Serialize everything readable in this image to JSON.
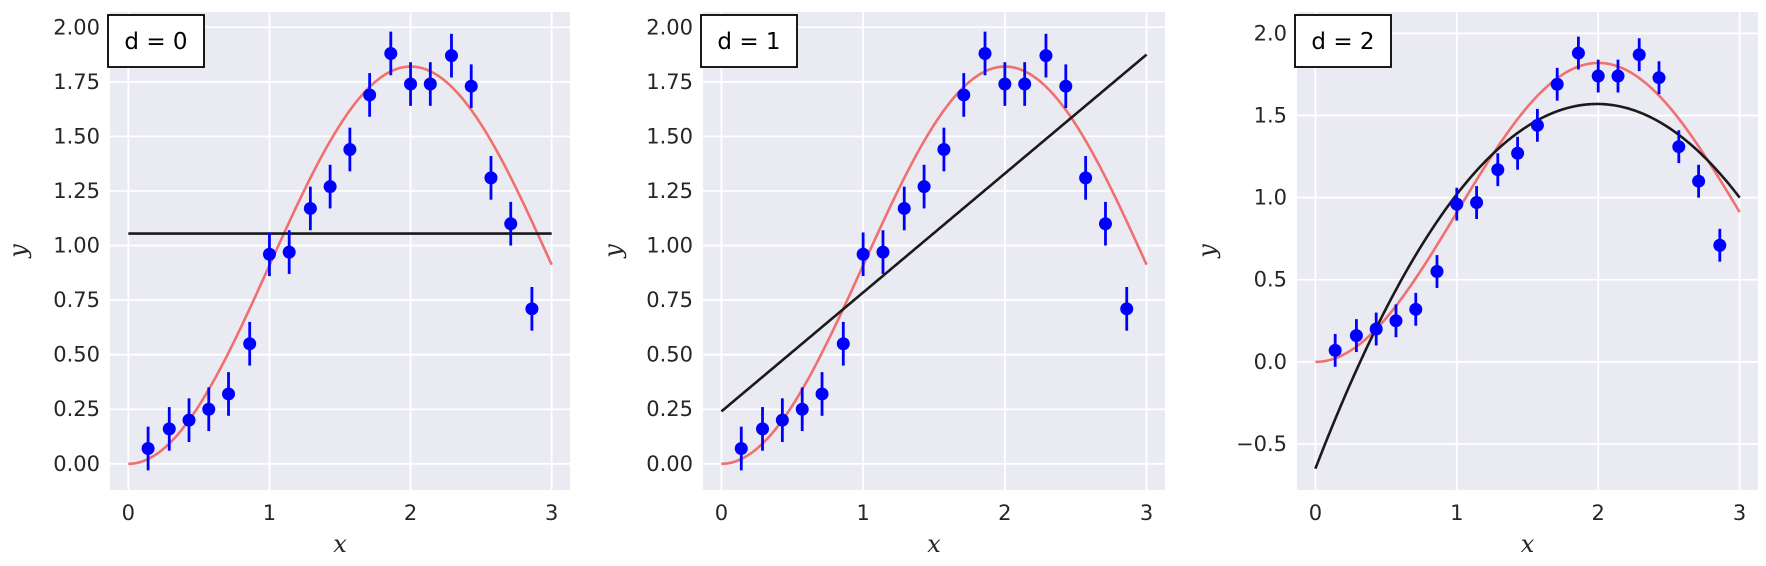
{
  "colors": {
    "background": "#eaeaf2",
    "grid": "#ffffff",
    "true_curve": "#f07070",
    "fit_line": "#1a1a1a",
    "points": "#0000ff",
    "errorbars": "#0000ff"
  },
  "chart_data": [
    {
      "type": "scatter",
      "annotation": "d = 0",
      "xlabel": "x",
      "ylabel": "y",
      "xlim": [
        -0.13,
        3.13
      ],
      "ylim": [
        -0.12,
        2.07
      ],
      "xticks": [
        0,
        1,
        2,
        3
      ],
      "xtick_labels": [
        "0",
        "1",
        "2",
        "3"
      ],
      "yticks": [
        0,
        0.25,
        0.5,
        0.75,
        1.0,
        1.25,
        1.5,
        1.75,
        2.0
      ],
      "ytick_labels": [
        "0.00",
        "0.25",
        "0.50",
        "0.75",
        "1.00",
        "1.25",
        "1.50",
        "1.75",
        "2.00"
      ],
      "grid": true,
      "fit_coeffs": [
        1.055
      ],
      "x": [
        0.14,
        0.29,
        0.43,
        0.57,
        0.71,
        0.86,
        1.0,
        1.14,
        1.29,
        1.43,
        1.57,
        1.71,
        1.86,
        2.0,
        2.14,
        2.29,
        2.43,
        2.57,
        2.71,
        2.86
      ],
      "y": [
        0.07,
        0.16,
        0.2,
        0.25,
        0.32,
        0.55,
        0.96,
        0.97,
        1.17,
        1.27,
        1.44,
        1.69,
        1.88,
        1.74,
        1.74,
        1.87,
        1.73,
        1.31,
        1.1,
        0.71
      ],
      "yerr": 0.1
    },
    {
      "type": "scatter",
      "annotation": "d = 1",
      "xlabel": "x",
      "ylabel": "y",
      "xlim": [
        -0.13,
        3.13
      ],
      "ylim": [
        -0.12,
        2.07
      ],
      "xticks": [
        0,
        1,
        2,
        3
      ],
      "xtick_labels": [
        "0",
        "1",
        "2",
        "3"
      ],
      "yticks": [
        0,
        0.25,
        0.5,
        0.75,
        1.0,
        1.25,
        1.5,
        1.75,
        2.0
      ],
      "ytick_labels": [
        "0.00",
        "0.25",
        "0.50",
        "0.75",
        "1.00",
        "1.25",
        "1.50",
        "1.75",
        "2.00"
      ],
      "grid": true,
      "fit_coeffs": [
        0.24,
        0.545
      ],
      "x": [
        0.14,
        0.29,
        0.43,
        0.57,
        0.71,
        0.86,
        1.0,
        1.14,
        1.29,
        1.43,
        1.57,
        1.71,
        1.86,
        2.0,
        2.14,
        2.29,
        2.43,
        2.57,
        2.71,
        2.86
      ],
      "y": [
        0.07,
        0.16,
        0.2,
        0.25,
        0.32,
        0.55,
        0.96,
        0.97,
        1.17,
        1.27,
        1.44,
        1.69,
        1.88,
        1.74,
        1.74,
        1.87,
        1.73,
        1.31,
        1.1,
        0.71
      ],
      "yerr": 0.1
    },
    {
      "type": "scatter",
      "annotation": "d = 2",
      "xlabel": "x",
      "ylabel": "y",
      "xlim": [
        -0.13,
        3.13
      ],
      "ylim": [
        -0.78,
        2.13
      ],
      "xticks": [
        0,
        1,
        2,
        3
      ],
      "xtick_labels": [
        "0",
        "1",
        "2",
        "3"
      ],
      "yticks": [
        -0.5,
        0,
        0.5,
        1.0,
        1.5,
        2.0
      ],
      "ytick_labels": [
        "−0.5",
        "0.0",
        "0.5",
        "1.0",
        "1.5",
        "2.0"
      ],
      "grid": true,
      "fit_coeffs": [
        -0.65,
        2.23,
        -0.56
      ],
      "x": [
        0.14,
        0.29,
        0.43,
        0.57,
        0.71,
        0.86,
        1.0,
        1.14,
        1.29,
        1.43,
        1.57,
        1.71,
        1.86,
        2.0,
        2.14,
        2.29,
        2.43,
        2.57,
        2.71,
        2.86
      ],
      "y": [
        0.07,
        0.16,
        0.2,
        0.25,
        0.32,
        0.55,
        0.96,
        0.97,
        1.17,
        1.27,
        1.44,
        1.69,
        1.88,
        1.74,
        1.74,
        1.87,
        1.73,
        1.31,
        1.1,
        0.71
      ],
      "yerr": 0.1
    }
  ]
}
